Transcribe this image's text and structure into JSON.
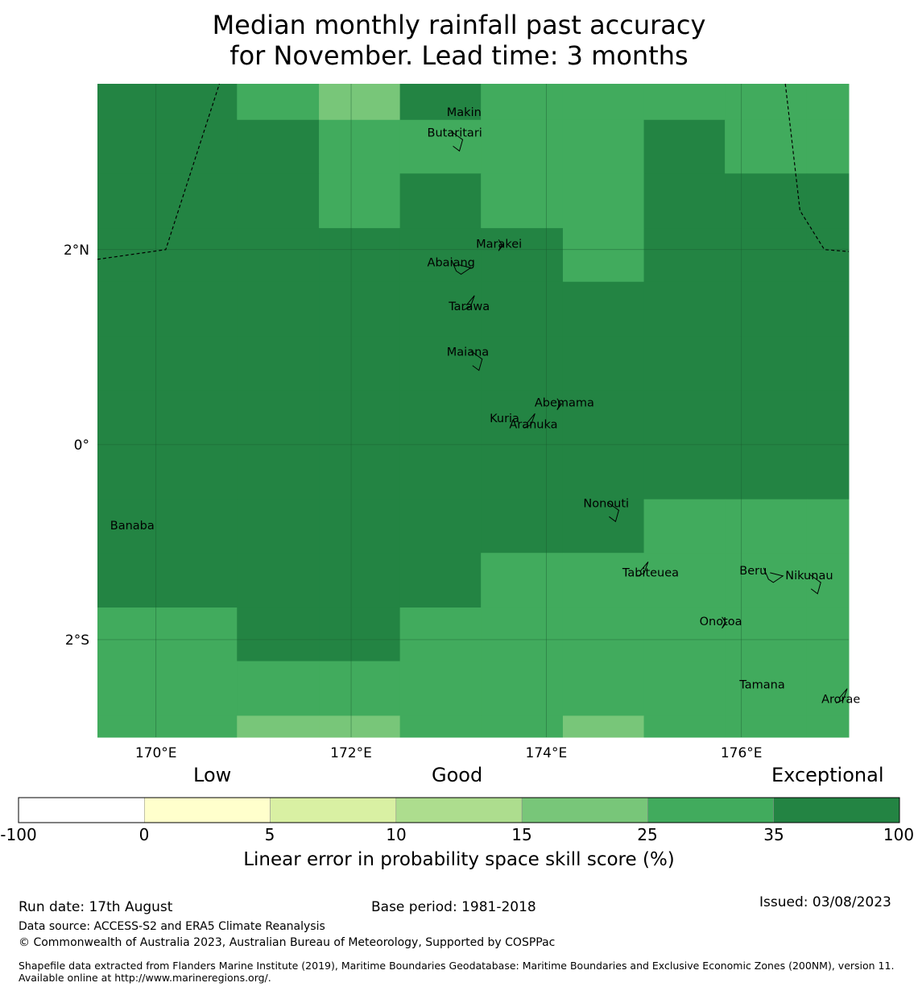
{
  "title_line1": "Median monthly rainfall past accuracy",
  "title_line2": "for November. Lead time: 3 months",
  "map": {
    "lon_range": [
      169.4,
      177.1
    ],
    "lat_range": [
      -3.0,
      3.7
    ],
    "lon_ticks": [
      170,
      172,
      174,
      176
    ],
    "lon_tick_labels": [
      "170°E",
      "172°E",
      "174°E",
      "176°E"
    ],
    "lat_ticks": [
      2,
      0,
      -2
    ],
    "lat_tick_labels": [
      "2°N",
      "0°",
      "2°S"
    ],
    "col_edges_lon": [
      169.4,
      170.83,
      171.67,
      172.5,
      173.33,
      174.17,
      175.0,
      175.83,
      176.67,
      177.1
    ],
    "row_edges_lat": [
      3.7,
      3.33,
      2.78,
      2.22,
      1.67,
      1.11,
      0.56,
      0.0,
      -0.56,
      -1.11,
      -1.67,
      -2.22,
      -2.78,
      -3.0
    ],
    "grid_values": [
      [
        40,
        30,
        20,
        40,
        30,
        30,
        30,
        30,
        30
      ],
      [
        40,
        40,
        30,
        30,
        30,
        30,
        40,
        30,
        30
      ],
      [
        40,
        40,
        30,
        40,
        30,
        30,
        40,
        40,
        40
      ],
      [
        40,
        40,
        40,
        40,
        40,
        30,
        40,
        40,
        40
      ],
      [
        40,
        40,
        40,
        40,
        40,
        40,
        40,
        40,
        40
      ],
      [
        40,
        40,
        40,
        40,
        40,
        40,
        40,
        40,
        40
      ],
      [
        40,
        40,
        40,
        40,
        40,
        40,
        40,
        40,
        40
      ],
      [
        40,
        40,
        40,
        40,
        40,
        40,
        40,
        40,
        40
      ],
      [
        40,
        40,
        40,
        40,
        40,
        40,
        30,
        30,
        30
      ],
      [
        40,
        40,
        40,
        40,
        30,
        30,
        30,
        30,
        30
      ],
      [
        30,
        40,
        40,
        30,
        30,
        30,
        30,
        30,
        30
      ],
      [
        30,
        30,
        30,
        30,
        30,
        30,
        30,
        30,
        30
      ],
      [
        30,
        20,
        20,
        30,
        30,
        20,
        30,
        30,
        30
      ]
    ],
    "places": [
      {
        "name": "Makin",
        "lon": 172.98,
        "lat": 3.37
      },
      {
        "name": "Butaritari",
        "lon": 172.78,
        "lat": 3.16
      },
      {
        "name": "Marakei",
        "lon": 173.28,
        "lat": 2.02
      },
      {
        "name": "Abaiang",
        "lon": 172.78,
        "lat": 1.83
      },
      {
        "name": "Tarawa",
        "lon": 173.0,
        "lat": 1.38
      },
      {
        "name": "Maiana",
        "lon": 172.98,
        "lat": 0.91
      },
      {
        "name": "Abemama",
        "lon": 173.88,
        "lat": 0.39
      },
      {
        "name": "Kuria",
        "lon": 173.42,
        "lat": 0.23
      },
      {
        "name": "Aranuka",
        "lon": 173.62,
        "lat": 0.17
      },
      {
        "name": "Nonouti",
        "lon": 174.38,
        "lat": -0.64
      },
      {
        "name": "Banaba",
        "lon": 169.53,
        "lat": -0.87
      },
      {
        "name": "Beru",
        "lon": 175.98,
        "lat": -1.33
      },
      {
        "name": "Tabiteuea",
        "lon": 174.78,
        "lat": -1.35
      },
      {
        "name": "Nikunau",
        "lon": 176.45,
        "lat": -1.38
      },
      {
        "name": "Onotoa",
        "lon": 175.57,
        "lat": -1.85
      },
      {
        "name": "Tamana",
        "lon": 175.98,
        "lat": -2.5
      },
      {
        "name": "Arorae",
        "lon": 176.82,
        "lat": -2.65
      }
    ],
    "eez_boundary": [
      [
        [
          169.4,
          1.9
        ],
        [
          170.1,
          2.0
        ],
        [
          170.65,
          3.7
        ]
      ],
      [
        [
          176.45,
          3.7
        ],
        [
          176.6,
          2.4
        ],
        [
          176.85,
          2.0
        ],
        [
          177.1,
          1.98
        ]
      ]
    ],
    "colors": {
      "cell_30": "#41ab5d",
      "cell_20": "#78c679",
      "cell_40": "#238443",
      "gridline": "#1a5a30",
      "boundary": "#000000"
    }
  },
  "categories": {
    "low": "Low",
    "good": "Good",
    "exceptional": "Exceptional"
  },
  "colorbar": {
    "bounds": [
      "-100",
      "0",
      "5",
      "10",
      "15",
      "25",
      "35",
      "100"
    ],
    "colors": [
      "#ffffff",
      "#ffffcc",
      "#d9f0a3",
      "#addd8e",
      "#78c679",
      "#41ab5d",
      "#238443"
    ],
    "label": "Linear error in probability space skill score (%)"
  },
  "footer": {
    "run_date": "Run date: 17th August",
    "base_period": "Base period: 1981-2018",
    "issued": "Issued: 03/08/2023",
    "data_source": "Data source: ACCESS-S2 and ERA5 Climate Reanalysis",
    "copyright": "© Commonwealth of Australia 2023, Australian Bureau of Meteorology, Supported by COSPPac",
    "shapefile": "Shapefile data extracted from Flanders Marine Institute (2019), Maritime Boundaries Geodatabase: Maritime Boundaries and Exclusive Economic Zones (200NM), version 11. Available online at http://www.marineregions.org/."
  }
}
